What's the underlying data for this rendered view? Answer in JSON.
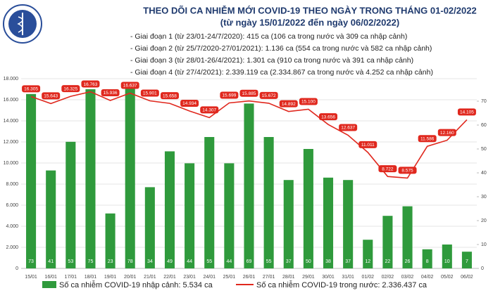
{
  "chart_data": {
    "type": "bar-line",
    "title": "THEO DÕI CA NHIỄM MỚI COVID-19 THEO NGÀY TRONG THÁNG 01-02/2022",
    "subtitle": "(từ ngày 15/01/2022 đến ngày 06/02/2022)",
    "annotations": [
      "- Giai đoạn 1 (từ 23/01-24/7/2020): 415 ca (106 ca trong nước và 309 ca nhập cảnh)",
      "- Giai đoạn 2 (từ 25/7/2020-27/01/2021): 1.136 ca (554 ca trong nước và 582 ca nhập cảnh)",
      "- Giai đoạn 3 (từ 28/01-26/4/2021): 1.301 ca (910 ca trong nước và 391 ca nhập cảnh)",
      "- Giai đoạn 4 (từ 27/4/2021): 2.339.119 ca (2.334.867 ca trong nước và 4.252 ca nhập cảnh)"
    ],
    "categories": [
      "15/01",
      "16/01",
      "17/01",
      "18/01",
      "19/01",
      "20/01",
      "21/01",
      "22/01",
      "23/01",
      "24/01",
      "25/01",
      "26/01",
      "27/01",
      "28/01",
      "29/01",
      "30/01",
      "31/01",
      "01/02",
      "02/02",
      "03/02",
      "04/02",
      "05/02",
      "06/02"
    ],
    "series": [
      {
        "name": "Số ca nhiễm COVID-19 nhập cảnh: 5.534 ca",
        "type": "bar",
        "axis": "y2",
        "color": "#2f9a3c",
        "values": [
          73,
          41,
          53,
          75,
          23,
          78,
          34,
          49,
          44,
          55,
          44,
          69,
          55,
          37,
          50,
          38,
          37,
          12,
          22,
          26,
          8,
          10,
          7
        ]
      },
      {
        "name": "Số ca nhiễm COVID-19 trong nước: 2.336.437 ca",
        "type": "line",
        "axis": "y",
        "color": "#e0281e",
        "values": [
          16305,
          15643,
          16325,
          16763,
          15936,
          16637,
          15901,
          15658,
          14934,
          14307,
          15699,
          15885,
          15672,
          14892,
          15100,
          13656,
          12637,
          11011,
          8722,
          8575,
          11586,
          12160,
          14105
        ],
        "value_labels": [
          "16.305",
          "15.643",
          "16.325",
          "16.763",
          "15.936",
          "16.637",
          "15.901",
          "15.658",
          "14.934",
          "14.307",
          "15.699",
          "15.885",
          "15.672",
          "14.892",
          "15.100",
          "13.656",
          "12.637",
          "11.011",
          "8.722",
          "8.575",
          "11.586",
          "12.160",
          "14.105"
        ]
      }
    ],
    "ylim": [
      0,
      18000
    ],
    "yticks": [
      0,
      {
        "value": 2000,
        "label": "2.000"
      },
      {
        "value": 4000,
        "label": "4.000"
      },
      {
        "value": 6000,
        "label": "6.000"
      },
      {
        "value": 8000,
        "label": "8.000"
      },
      {
        "value": 10000,
        "label": "10.000"
      },
      {
        "value": 12000,
        "label": "12.000"
      },
      {
        "value": 14000,
        "label": "14.000"
      },
      {
        "value": 16000,
        "label": "16.000"
      },
      {
        "value": 18000,
        "label": "18.000"
      }
    ],
    "y2lim": [
      0,
      80
    ],
    "y2ticks": [
      0,
      10,
      20,
      30,
      40,
      50,
      60,
      70
    ],
    "grid": true
  }
}
